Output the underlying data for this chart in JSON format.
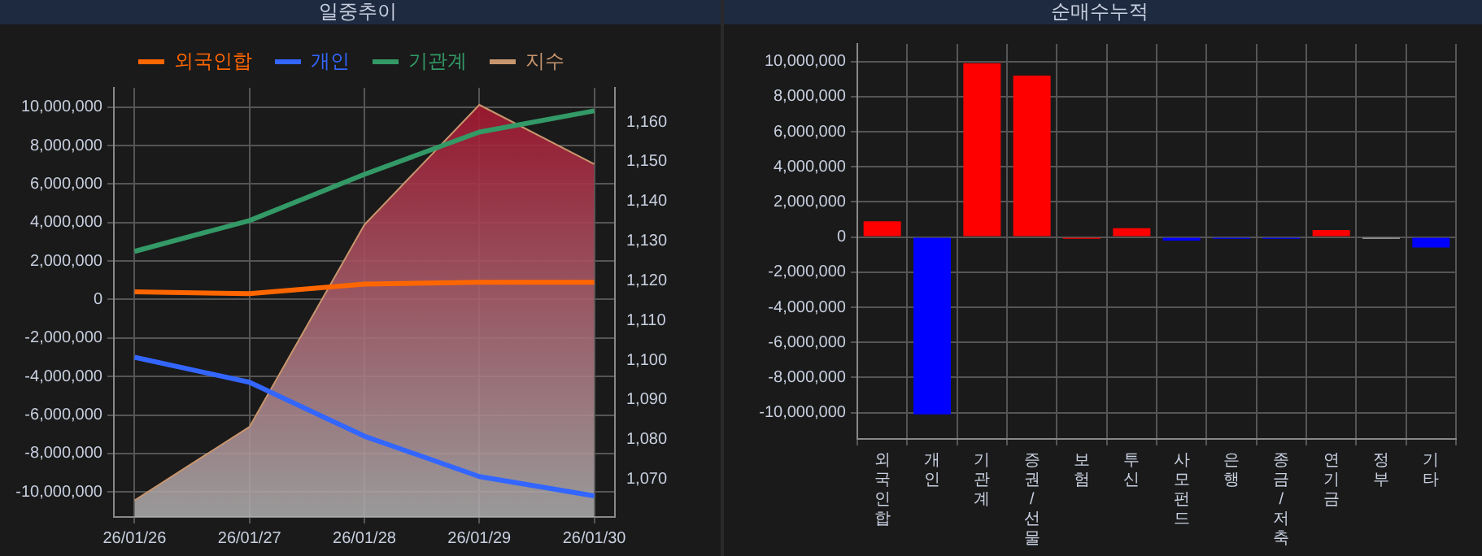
{
  "chart_data": [
    {
      "type": "line",
      "title": "일중추이",
      "categories": [
        "26/01/26",
        "26/01/27",
        "26/01/28",
        "26/01/29",
        "26/01/30"
      ],
      "series": [
        {
          "name": "외국인합",
          "color": "#ff6600",
          "values": [
            400000,
            300000,
            800000,
            900000,
            900000
          ]
        },
        {
          "name": "개인",
          "color": "#3366ff",
          "values": [
            -3000000,
            -4300000,
            -7100000,
            -9200000,
            -10200000
          ]
        },
        {
          "name": "기관계",
          "color": "#339966",
          "values": [
            2500000,
            4100000,
            6500000,
            8700000,
            9800000
          ]
        },
        {
          "name": "지수",
          "color": "#c8966e",
          "type": "area",
          "axis": "y2",
          "values": [
            1064.7,
            1083.2,
            1134.1,
            1164.3,
            1149.4
          ]
        }
      ],
      "ylim": [
        -11300000,
        11000000
      ],
      "yticks": [
        {
          "value": -10000000,
          "label": "-10,000,000"
        },
        {
          "value": -8000000,
          "label": "-8,000,000"
        },
        {
          "value": -6000000,
          "label": "-6,000,000"
        },
        {
          "value": -4000000,
          "label": "-4,000,000"
        },
        {
          "value": -2000000,
          "label": "-2,000,000"
        },
        0,
        {
          "value": 2000000,
          "label": "2,000,000"
        },
        {
          "value": 4000000,
          "label": "4,000,000"
        },
        {
          "value": 6000000,
          "label": "6,000,000"
        },
        {
          "value": 8000000,
          "label": "8,000,000"
        },
        {
          "value": 10000000,
          "label": "10,000,000"
        }
      ],
      "y2lim": [
        1060.5,
        1168.6
      ],
      "y2ticks": [
        {
          "value": 1070,
          "label": "1,070"
        },
        {
          "value": 1080,
          "label": "1,080"
        },
        {
          "value": 1090,
          "label": "1,090"
        },
        {
          "value": 1100,
          "label": "1,100"
        },
        {
          "value": 1110,
          "label": "1,110"
        },
        {
          "value": 1120,
          "label": "1,120"
        },
        {
          "value": 1130,
          "label": "1,130"
        },
        {
          "value": 1140,
          "label": "1,140"
        },
        {
          "value": 1150,
          "label": "1,150"
        },
        {
          "value": 1160,
          "label": "1,160"
        }
      ],
      "grid": true,
      "legend": "top"
    },
    {
      "type": "bar",
      "title": "순매수누적",
      "categories": [
        "외국인합",
        "개인",
        "기관계",
        "증권/선물",
        "보험",
        "투신",
        "사모펀드",
        "은행",
        "종금/저축",
        "연기금",
        "정부",
        "기타"
      ],
      "values": [
        900000,
        -10100000,
        9900000,
        9200000,
        -100000,
        500000,
        -200000,
        -100000,
        -100000,
        400000,
        -100000,
        -600000
      ],
      "colors": [
        "#ff0000",
        "#0000ff",
        "#ff0000",
        "#ff0000",
        "#ff0000",
        "#ff0000",
        "#0000ff",
        "#0000ff",
        "#0000ff",
        "#ff0000",
        "#b0b0b0",
        "#0000ff"
      ],
      "ylim": [
        -11500000,
        11000000
      ],
      "yticks": [
        {
          "value": -10000000,
          "label": "-10,000,000"
        },
        {
          "value": -8000000,
          "label": "-8,000,000"
        },
        {
          "value": -6000000,
          "label": "-6,000,000"
        },
        {
          "value": -4000000,
          "label": "-4,000,000"
        },
        {
          "value": -2000000,
          "label": "-2,000,000"
        },
        0,
        {
          "value": 2000000,
          "label": "2,000,000"
        },
        {
          "value": 4000000,
          "label": "4,000,000"
        },
        {
          "value": 6000000,
          "label": "6,000,000"
        },
        {
          "value": 8000000,
          "label": "8,000,000"
        },
        {
          "value": 10000000,
          "label": "10,000,000"
        }
      ],
      "grid": true
    }
  ]
}
